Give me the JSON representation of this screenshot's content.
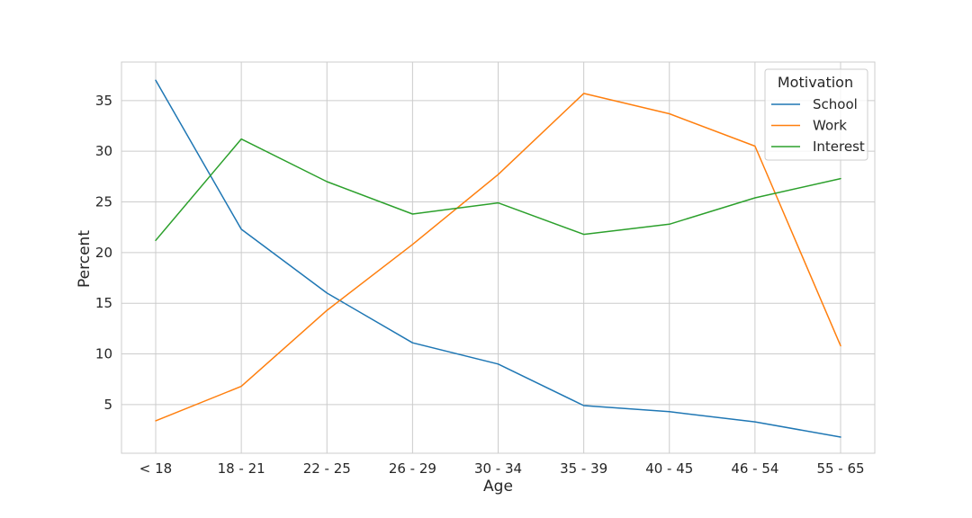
{
  "chart_data": {
    "type": "line",
    "xlabel": "Age",
    "ylabel": "Percent",
    "categories": [
      "< 18",
      "18 - 21",
      "22 - 25",
      "26 - 29",
      "30 - 34",
      "35 - 39",
      "40 - 45",
      "46 - 54",
      "55 - 65"
    ],
    "ylim": [
      0.2,
      38.8
    ],
    "yticks": [
      5,
      10,
      15,
      20,
      25,
      30,
      35
    ],
    "grid": true,
    "legend": {
      "title": "Motivation",
      "position": "top-right"
    },
    "series": [
      {
        "name": "School",
        "color": "#1f77b4",
        "values": [
          37.0,
          22.3,
          16.0,
          11.1,
          9.0,
          4.9,
          4.3,
          3.3,
          1.8
        ]
      },
      {
        "name": "Work",
        "color": "#ff7f0e",
        "values": [
          3.4,
          6.8,
          14.3,
          20.8,
          27.7,
          35.7,
          33.7,
          30.5,
          10.8
        ]
      },
      {
        "name": "Interest",
        "color": "#2ca02c",
        "values": [
          21.2,
          31.2,
          27.0,
          23.8,
          24.9,
          21.8,
          22.8,
          25.4,
          27.3
        ]
      }
    ]
  }
}
